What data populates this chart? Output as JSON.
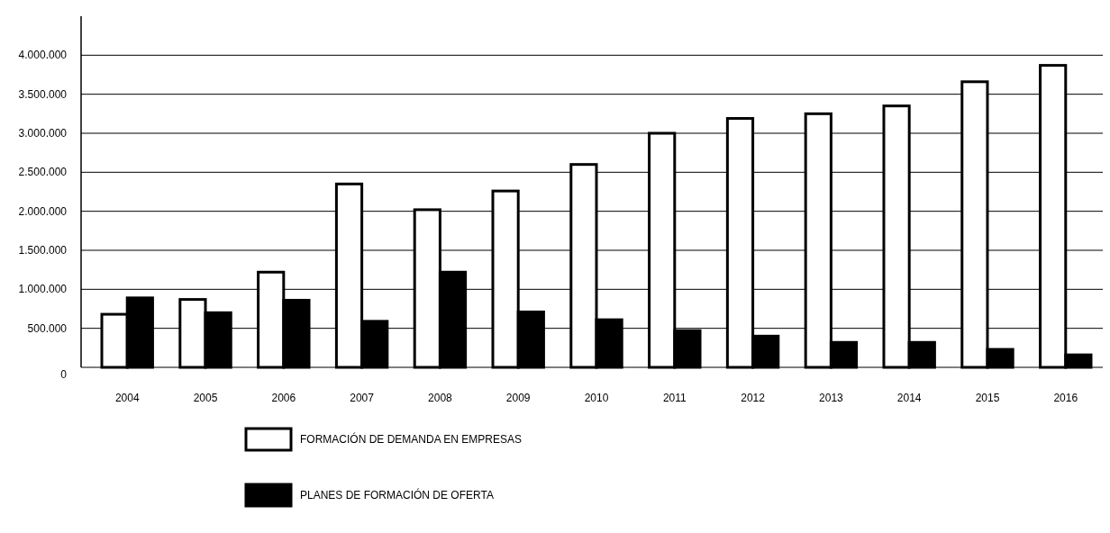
{
  "chart_data": {
    "type": "bar",
    "categories": [
      "2004",
      "2005",
      "2006",
      "2007",
      "2008",
      "2009",
      "2010",
      "2011",
      "2012",
      "2013",
      "2014",
      "2015",
      "2016"
    ],
    "series": [
      {
        "name": "FORMACIÓN DE DEMANDA EN EMPRESAS",
        "color": "#ffffff",
        "values": [
          680000,
          870000,
          1220000,
          2350000,
          2020000,
          2260000,
          2600000,
          3000000,
          3190000,
          3250000,
          3350000,
          3660000,
          3870000
        ]
      },
      {
        "name": "PLANES DE FORMACIÓN DE OFERTA",
        "color": "#000000",
        "values": [
          890000,
          700000,
          860000,
          590000,
          1220000,
          710000,
          610000,
          470000,
          400000,
          320000,
          320000,
          230000,
          160000
        ]
      }
    ],
    "ylim": [
      0,
      4500000
    ],
    "yticks": [
      0,
      {
        "value": 500000,
        "label": "500.000"
      },
      {
        "value": 1000000,
        "label": "1.000.000"
      },
      {
        "value": 1500000,
        "label": "1.500.000"
      },
      {
        "value": 2000000,
        "label": "2.000.000"
      },
      {
        "value": 2500000,
        "label": "2.500.000"
      },
      {
        "value": 3000000,
        "label": "3.000.000"
      },
      {
        "value": 3500000,
        "label": "3.500.000"
      },
      {
        "value": 4000000,
        "label": "4.000.000"
      }
    ],
    "grid": "y",
    "legend": "bottom"
  }
}
